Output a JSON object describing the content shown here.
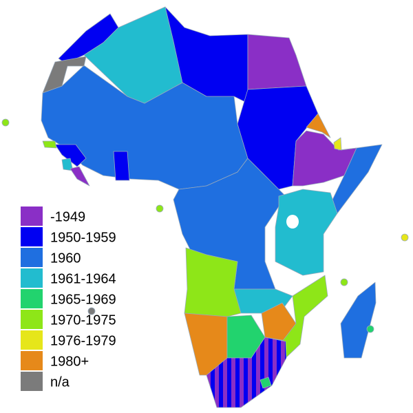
{
  "legend": {
    "items": [
      {
        "label": "-1949",
        "color": "#8a2fc6"
      },
      {
        "label": "1950-1959",
        "color": "#0000f2"
      },
      {
        "label": "1960",
        "color": "#1f6fe0"
      },
      {
        "label": "1961-1964",
        "color": "#22bccf"
      },
      {
        "label": "1965-1969",
        "color": "#22d36e"
      },
      {
        "label": "1970-1975",
        "color": "#8ee618"
      },
      {
        "label": "1976-1979",
        "color": "#e6e61a"
      },
      {
        "label": "1980+",
        "color": "#e6891a"
      },
      {
        "label": "n/a",
        "color": "#7b7b7b"
      }
    ]
  }
}
